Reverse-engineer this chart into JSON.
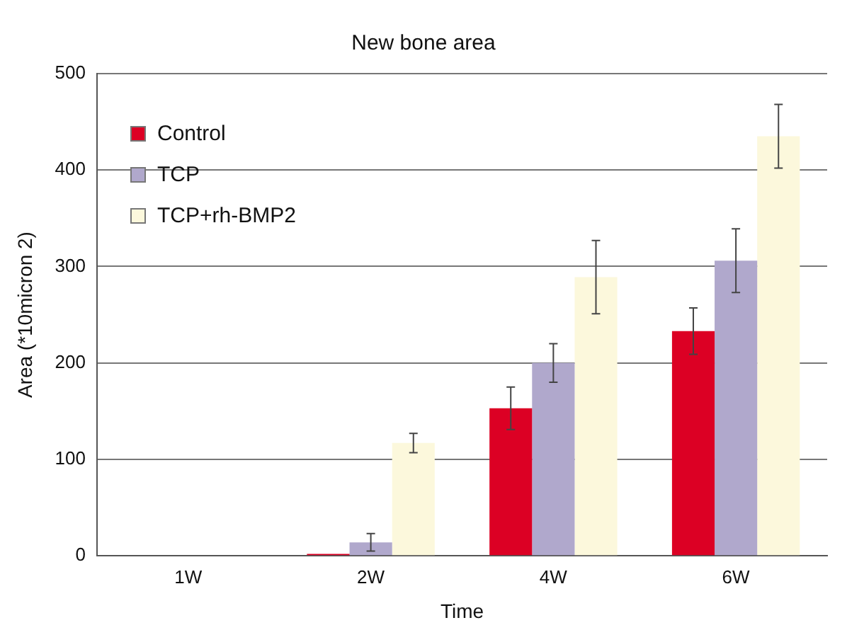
{
  "chart_data": {
    "type": "bar",
    "title": "New bone area",
    "xlabel": "Time",
    "ylabel": "Area (*10micron 2)",
    "categories": [
      "1W",
      "2W",
      "4W",
      "6W"
    ],
    "series": [
      {
        "name": "Control",
        "color": "#dc0024",
        "values": [
          0,
          2,
          153,
          233
        ],
        "errors": [
          null,
          null,
          22,
          24
        ]
      },
      {
        "name": "TCP",
        "color": "#b0a8cc",
        "values": [
          0,
          14,
          200,
          306
        ],
        "errors": [
          null,
          9,
          20,
          33
        ]
      },
      {
        "name": "TCP+rh-BMP2",
        "color": "#fcf8dc",
        "values": [
          0,
          117,
          289,
          435
        ],
        "errors": [
          null,
          10,
          38,
          33
        ]
      }
    ],
    "ylim": [
      0,
      500
    ],
    "yticks": [
      0,
      100,
      200,
      300,
      400,
      500
    ],
    "grid": "y",
    "legend": "top left"
  }
}
